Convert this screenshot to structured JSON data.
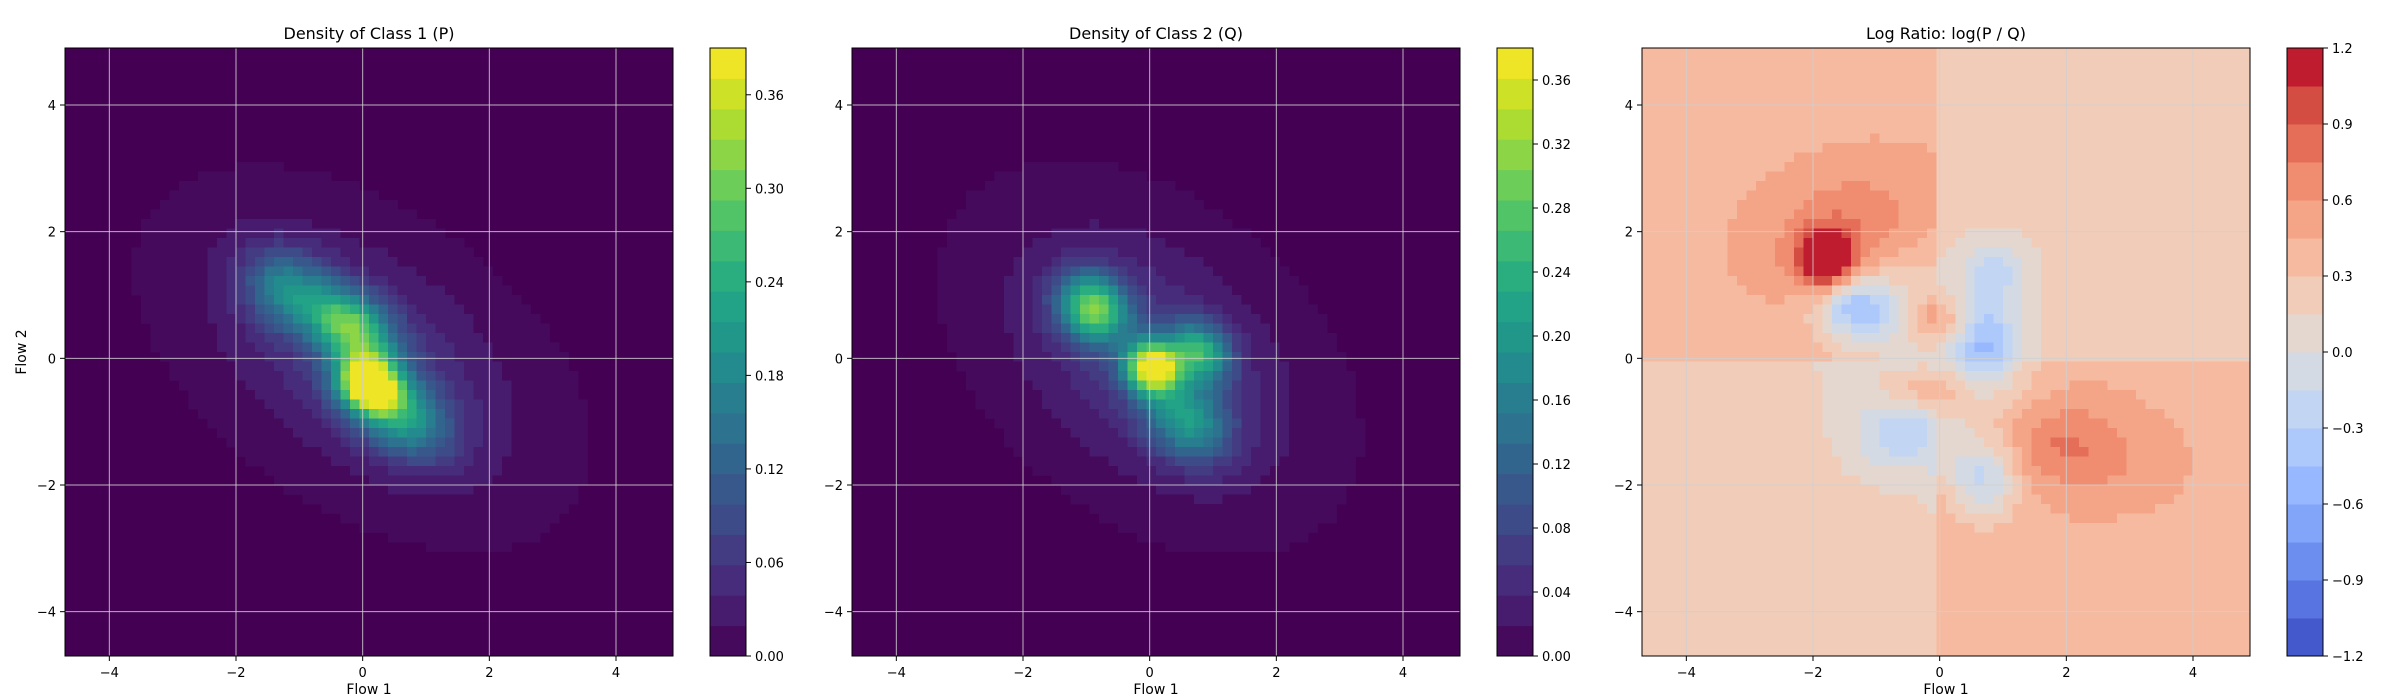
{
  "chart_data": [
    {
      "type": "heatmap",
      "subtype": "filled-contour",
      "title": "Density of Class 1 (P)",
      "xlabel": "Flow 1",
      "ylabel": "Flow 2",
      "xlim": [
        -4.7,
        4.9
      ],
      "ylim": [
        -4.7,
        4.9
      ],
      "xticks": [
        "−4",
        "−2",
        "0",
        "2",
        "4"
      ],
      "yticks": [
        "−4",
        "−2",
        "0",
        "2",
        "4"
      ],
      "grid": true,
      "colormap": "viridis",
      "colorbar": {
        "min": 0.0,
        "max": 0.39,
        "ticks": [
          "0.00",
          "0.06",
          "0.12",
          "0.18",
          "0.24",
          "0.30",
          "0.36"
        ],
        "tick_values": [
          0.0,
          0.06,
          0.12,
          0.18,
          0.24,
          0.3,
          0.36
        ]
      },
      "features": [
        {
          "cx": 0.1,
          "cy": -0.4,
          "sx": 0.35,
          "sy": 0.3,
          "angle_deg": -35,
          "peak": 0.37
        },
        {
          "cx": -0.2,
          "cy": 0.5,
          "sx": 0.5,
          "sy": 0.35,
          "angle_deg": -35,
          "peak": 0.24
        },
        {
          "cx": 0.6,
          "cy": -0.9,
          "sx": 0.6,
          "sy": 0.4,
          "angle_deg": -35,
          "peak": 0.17
        },
        {
          "cx": -1.2,
          "cy": 1.1,
          "sx": 0.5,
          "sy": 0.4,
          "angle_deg": -35,
          "peak": 0.14
        },
        {
          "cx": 0.0,
          "cy": 0.0,
          "sx": 1.7,
          "sy": 1.0,
          "angle_deg": -35,
          "peak": 0.07
        }
      ]
    },
    {
      "type": "heatmap",
      "subtype": "filled-contour",
      "title": "Density of Class 2 (Q)",
      "xlabel": "Flow 1",
      "ylabel": "",
      "xlim": [
        -4.7,
        4.9
      ],
      "ylim": [
        -4.7,
        4.9
      ],
      "xticks": [
        "−4",
        "−2",
        "0",
        "2",
        "4"
      ],
      "yticks": [
        "−4",
        "−2",
        "0",
        "2",
        "4"
      ],
      "grid": true,
      "colormap": "viridis",
      "colorbar": {
        "min": 0.0,
        "max": 0.38,
        "ticks": [
          "0.00",
          "0.04",
          "0.08",
          "0.12",
          "0.16",
          "0.20",
          "0.24",
          "0.28",
          "0.32",
          "0.36"
        ],
        "tick_values": [
          0.0,
          0.04,
          0.08,
          0.12,
          0.16,
          0.2,
          0.24,
          0.28,
          0.32,
          0.36
        ]
      },
      "features": [
        {
          "cx": 0.05,
          "cy": -0.15,
          "sx": 0.3,
          "sy": 0.28,
          "angle_deg": -40,
          "peak": 0.36
        },
        {
          "cx": -0.9,
          "cy": 0.8,
          "sx": 0.4,
          "sy": 0.35,
          "angle_deg": -40,
          "peak": 0.26
        },
        {
          "cx": 0.8,
          "cy": 0.1,
          "sx": 0.35,
          "sy": 0.3,
          "angle_deg": -40,
          "peak": 0.2
        },
        {
          "cx": 0.6,
          "cy": -1.0,
          "sx": 0.5,
          "sy": 0.4,
          "angle_deg": -40,
          "peak": 0.16
        },
        {
          "cx": 0.0,
          "cy": 0.0,
          "sx": 1.6,
          "sy": 1.05,
          "angle_deg": -40,
          "peak": 0.07
        }
      ]
    },
    {
      "type": "heatmap",
      "subtype": "filled-contour",
      "title": "Log Ratio: log(P / Q)",
      "xlabel": "Flow 1",
      "ylabel": "",
      "xlim": [
        -4.7,
        4.9
      ],
      "ylim": [
        -4.7,
        4.9
      ],
      "xticks": [
        "−4",
        "−2",
        "0",
        "2",
        "4"
      ],
      "yticks": [
        "−4",
        "−2",
        "0",
        "2",
        "4"
      ],
      "grid": true,
      "colormap": "coolwarm",
      "colorbar": {
        "min": -1.2,
        "max": 1.2,
        "ticks": [
          "−1.2",
          "−0.9",
          "−0.6",
          "−0.3",
          "0.0",
          "0.3",
          "0.6",
          "0.9",
          "1.2"
        ],
        "tick_values": [
          -1.2,
          -0.9,
          -0.6,
          -0.3,
          0.0,
          0.3,
          0.6,
          0.9,
          1.2
        ]
      },
      "features": [
        {
          "cx": -1.8,
          "cy": 1.55,
          "sx": 0.3,
          "sy": 0.3,
          "angle_deg": 0,
          "peak": 1.1
        },
        {
          "cx": -1.5,
          "cy": 2.1,
          "sx": 0.9,
          "sy": 0.6,
          "angle_deg": 20,
          "peak": 0.3
        },
        {
          "cx": 0.0,
          "cy": 0.6,
          "sx": 0.3,
          "sy": 0.3,
          "angle_deg": 0,
          "peak": 0.45
        },
        {
          "cx": -0.2,
          "cy": -0.5,
          "sx": 0.5,
          "sy": 0.25,
          "angle_deg": 0,
          "peak": 0.4
        },
        {
          "cx": 2.0,
          "cy": -1.4,
          "sx": 0.9,
          "sy": 0.5,
          "angle_deg": -10,
          "peak": 0.35
        },
        {
          "cx": -1.3,
          "cy": 0.8,
          "sx": 0.45,
          "sy": 0.35,
          "angle_deg": 0,
          "peak": -0.75
        },
        {
          "cx": 0.7,
          "cy": 0.2,
          "sx": 0.35,
          "sy": 0.5,
          "angle_deg": 0,
          "peak": -0.55
        },
        {
          "cx": 0.7,
          "cy": -1.9,
          "sx": 0.4,
          "sy": 0.45,
          "angle_deg": 0,
          "peak": -0.6
        },
        {
          "cx": -0.6,
          "cy": -1.2,
          "sx": 0.5,
          "sy": 0.4,
          "angle_deg": 0,
          "peak": -0.4
        },
        {
          "cx": 0.9,
          "cy": 1.4,
          "sx": 0.4,
          "sy": 0.4,
          "angle_deg": 0,
          "peak": -0.35
        }
      ],
      "background": {
        "upper_left": 0.42,
        "lower_right": 0.42,
        "upper_right": 0.22,
        "lower_left": 0.18
      }
    }
  ],
  "colors": {
    "viridis": [
      "#440154",
      "#482475",
      "#414487",
      "#355f8d",
      "#2a788e",
      "#21918c",
      "#22a884",
      "#44bf70",
      "#7ad151",
      "#bddf26",
      "#fde725"
    ],
    "coolwarm": [
      "#3b4cc0",
      "#5977e3",
      "#7b9ff9",
      "#9ebeff",
      "#c0d4f5",
      "#dddcdc",
      "#f2cbb7",
      "#f7ac8e",
      "#ee8468",
      "#d65244",
      "#b40426"
    ],
    "grid": "#d0d0d0"
  }
}
